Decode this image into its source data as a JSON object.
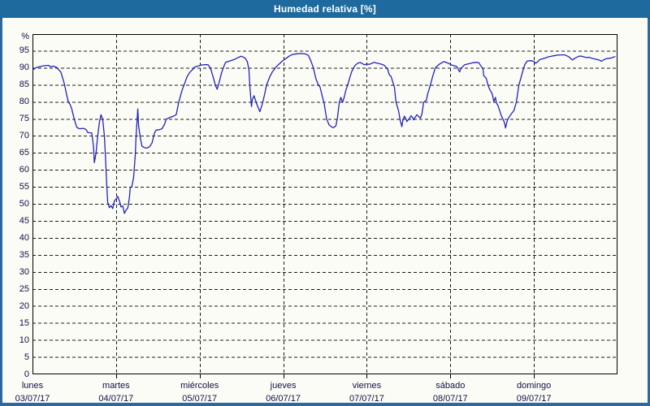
{
  "window": {
    "title": "Humedad relativa [%]"
  },
  "colors": {
    "titlebar_bg": "#1e6a9e",
    "titlebar_text": "#ffffff",
    "frame_border": "#2a6aa0",
    "content_bg": "#fcfcf6",
    "grid": "#1c1c1c",
    "axis": "#000000",
    "line": "#2222c0",
    "label_text": "#101048"
  },
  "y_axis": {
    "unit_label": "%",
    "min": 0,
    "max": 100,
    "tick_step": 5,
    "labeled_ticks_from": 0,
    "labeled_ticks_to": 95
  },
  "x_axis": {
    "days": [
      {
        "name": "lunes",
        "date": "03/07/17"
      },
      {
        "name": "martes",
        "date": "04/07/17"
      },
      {
        "name": "miércoles",
        "date": "05/07/17"
      },
      {
        "name": "jueves",
        "date": "06/07/17"
      },
      {
        "name": "viernes",
        "date": "07/07/17"
      },
      {
        "name": "sábado",
        "date": "08/07/17"
      },
      {
        "name": "domingo",
        "date": "09/07/17"
      }
    ]
  },
  "chart_data": {
    "type": "line",
    "title": "Humedad relativa [%]",
    "xlabel": "",
    "ylabel": "%",
    "ylim": [
      0,
      100
    ],
    "y_tick_step": 5,
    "grid": "dashed",
    "legend": "none",
    "x_unit": "days since lunes 03/07/17 00:00",
    "x_range": [
      0,
      7
    ],
    "x_tick_labels": [
      "lunes 03/07/17",
      "martes 04/07/17",
      "miércoles 05/07/17",
      "jueves 06/07/17",
      "viernes 07/07/17",
      "sábado 08/07/17",
      "domingo 09/07/17"
    ],
    "series": [
      {
        "name": "Humedad relativa [%]",
        "color": "#2222c0",
        "points": [
          [
            0.0,
            89.3
          ],
          [
            0.03,
            90.0
          ],
          [
            0.08,
            90.4
          ],
          [
            0.13,
            90.7
          ],
          [
            0.19,
            90.8
          ],
          [
            0.22,
            90.4
          ],
          [
            0.25,
            90.6
          ],
          [
            0.29,
            90.2
          ],
          [
            0.34,
            88.8
          ],
          [
            0.38,
            85.5
          ],
          [
            0.41,
            82.0
          ],
          [
            0.43,
            80.0
          ],
          [
            0.45,
            79.3
          ],
          [
            0.47,
            78.0
          ],
          [
            0.5,
            75.0
          ],
          [
            0.53,
            72.6
          ],
          [
            0.56,
            72.2
          ],
          [
            0.61,
            72.3
          ],
          [
            0.64,
            72.0
          ],
          [
            0.66,
            71.1
          ],
          [
            0.71,
            70.9
          ],
          [
            0.73,
            67.0
          ],
          [
            0.74,
            62.2
          ],
          [
            0.76,
            65.0
          ],
          [
            0.78,
            70.0
          ],
          [
            0.8,
            74.0
          ],
          [
            0.82,
            76.3
          ],
          [
            0.84,
            75.0
          ],
          [
            0.86,
            70.0
          ],
          [
            0.875,
            63.0
          ],
          [
            0.89,
            55.0
          ],
          [
            0.9,
            50.5
          ],
          [
            0.92,
            49.0
          ],
          [
            0.94,
            49.6
          ],
          [
            0.96,
            48.7
          ],
          [
            0.98,
            51.0
          ],
          [
            1.0,
            51.5
          ],
          [
            1.02,
            52.3
          ],
          [
            1.04,
            51.0
          ],
          [
            1.06,
            49.2
          ],
          [
            1.08,
            49.5
          ],
          [
            1.1,
            47.3
          ],
          [
            1.12,
            48.3
          ],
          [
            1.14,
            48.9
          ],
          [
            1.16,
            52.0
          ],
          [
            1.17,
            54.8
          ],
          [
            1.19,
            55.3
          ],
          [
            1.21,
            58.0
          ],
          [
            1.23,
            64.5
          ],
          [
            1.24,
            70.0
          ],
          [
            1.26,
            78.0
          ],
          [
            1.27,
            73.0
          ],
          [
            1.29,
            69.5
          ],
          [
            1.31,
            67.1
          ],
          [
            1.34,
            66.6
          ],
          [
            1.37,
            66.5
          ],
          [
            1.4,
            66.9
          ],
          [
            1.43,
            68.0
          ],
          [
            1.46,
            71.0
          ],
          [
            1.48,
            71.8
          ],
          [
            1.52,
            71.9
          ],
          [
            1.55,
            72.2
          ],
          [
            1.58,
            73.5
          ],
          [
            1.6,
            75.0
          ],
          [
            1.64,
            75.5
          ],
          [
            1.68,
            75.8
          ],
          [
            1.72,
            76.3
          ],
          [
            1.75,
            80.0
          ],
          [
            1.79,
            83.5
          ],
          [
            1.82,
            85.5
          ],
          [
            1.85,
            87.5
          ],
          [
            1.88,
            88.7
          ],
          [
            1.92,
            89.7
          ],
          [
            1.94,
            90.3
          ],
          [
            1.99,
            90.7
          ],
          [
            2.02,
            90.9
          ],
          [
            2.06,
            91.0
          ],
          [
            2.1,
            91.0
          ],
          [
            2.13,
            90.0
          ],
          [
            2.16,
            87.5
          ],
          [
            2.19,
            84.8
          ],
          [
            2.21,
            83.8
          ],
          [
            2.23,
            85.5
          ],
          [
            2.26,
            88.5
          ],
          [
            2.29,
            90.5
          ],
          [
            2.31,
            91.7
          ],
          [
            2.36,
            92.1
          ],
          [
            2.41,
            92.5
          ],
          [
            2.46,
            93.1
          ],
          [
            2.5,
            93.5
          ],
          [
            2.54,
            93.0
          ],
          [
            2.57,
            92.0
          ],
          [
            2.59,
            89.5
          ],
          [
            2.6,
            85.0
          ],
          [
            2.62,
            78.7
          ],
          [
            2.63,
            80.5
          ],
          [
            2.65,
            81.9
          ],
          [
            2.67,
            80.5
          ],
          [
            2.69,
            79.0
          ],
          [
            2.72,
            77.2
          ],
          [
            2.75,
            79.5
          ],
          [
            2.78,
            82.5
          ],
          [
            2.8,
            85.0
          ],
          [
            2.84,
            87.5
          ],
          [
            2.87,
            88.9
          ],
          [
            2.92,
            90.5
          ],
          [
            2.96,
            91.4
          ],
          [
            2.99,
            92.1
          ],
          [
            3.03,
            92.8
          ],
          [
            3.07,
            93.5
          ],
          [
            3.11,
            94.0
          ],
          [
            3.16,
            94.2
          ],
          [
            3.21,
            94.3
          ],
          [
            3.26,
            94.2
          ],
          [
            3.3,
            93.8
          ],
          [
            3.33,
            92.2
          ],
          [
            3.36,
            90.2
          ],
          [
            3.39,
            87.0
          ],
          [
            3.42,
            85.0
          ],
          [
            3.44,
            84.5
          ],
          [
            3.47,
            81.5
          ],
          [
            3.49,
            79.5
          ],
          [
            3.52,
            75.0
          ],
          [
            3.55,
            73.3
          ],
          [
            3.58,
            72.7
          ],
          [
            3.6,
            72.5
          ],
          [
            3.63,
            73.0
          ],
          [
            3.65,
            75.5
          ],
          [
            3.67,
            79.8
          ],
          [
            3.69,
            81.4
          ],
          [
            3.71,
            79.9
          ],
          [
            3.73,
            81.5
          ],
          [
            3.75,
            83.5
          ],
          [
            3.77,
            85.0
          ],
          [
            3.8,
            87.5
          ],
          [
            3.82,
            89.0
          ],
          [
            3.86,
            90.8
          ],
          [
            3.89,
            91.4
          ],
          [
            3.92,
            91.7
          ],
          [
            3.95,
            91.3
          ],
          [
            3.97,
            91.0
          ],
          [
            4.0,
            91.2
          ],
          [
            4.03,
            91.1
          ],
          [
            4.06,
            91.4
          ],
          [
            4.09,
            91.7
          ],
          [
            4.13,
            91.4
          ],
          [
            4.17,
            91.2
          ],
          [
            4.21,
            90.8
          ],
          [
            4.25,
            89.7
          ],
          [
            4.27,
            88.0
          ],
          [
            4.29,
            87.6
          ],
          [
            4.31,
            86.0
          ],
          [
            4.33,
            84.5
          ],
          [
            4.35,
            80.0
          ],
          [
            4.38,
            77.5
          ],
          [
            4.4,
            74.6
          ],
          [
            4.42,
            72.8
          ],
          [
            4.43,
            74.5
          ],
          [
            4.45,
            75.9
          ],
          [
            4.47,
            75.0
          ],
          [
            4.48,
            74.3
          ],
          [
            4.51,
            75.2
          ],
          [
            4.53,
            76.0
          ],
          [
            4.55,
            75.4
          ],
          [
            4.56,
            74.8
          ],
          [
            4.58,
            75.6
          ],
          [
            4.6,
            76.3
          ],
          [
            4.62,
            75.8
          ],
          [
            4.64,
            75.3
          ],
          [
            4.66,
            76.5
          ],
          [
            4.68,
            80.0
          ],
          [
            4.7,
            80.3
          ],
          [
            4.71,
            80.4
          ],
          [
            4.73,
            82.5
          ],
          [
            4.76,
            85.0
          ],
          [
            4.79,
            87.7
          ],
          [
            4.82,
            90.1
          ],
          [
            4.87,
            91.2
          ],
          [
            4.92,
            91.9
          ],
          [
            4.97,
            91.5
          ],
          [
            5.0,
            91.1
          ],
          [
            5.03,
            90.8
          ],
          [
            5.06,
            90.6
          ],
          [
            5.08,
            90.4
          ],
          [
            5.11,
            88.9
          ],
          [
            5.13,
            90.0
          ],
          [
            5.17,
            91.0
          ],
          [
            5.22,
            91.3
          ],
          [
            5.27,
            91.6
          ],
          [
            5.31,
            91.7
          ],
          [
            5.34,
            91.6
          ],
          [
            5.37,
            90.5
          ],
          [
            5.39,
            89.8
          ],
          [
            5.4,
            87.8
          ],
          [
            5.43,
            87.0
          ],
          [
            5.45,
            85.0
          ],
          [
            5.47,
            83.8
          ],
          [
            5.5,
            82.5
          ],
          [
            5.52,
            80.2
          ],
          [
            5.54,
            81.4
          ],
          [
            5.55,
            79.8
          ],
          [
            5.57,
            79.0
          ],
          [
            5.59,
            77.5
          ],
          [
            5.61,
            76.0
          ],
          [
            5.63,
            75.0
          ],
          [
            5.65,
            73.8
          ],
          [
            5.66,
            72.4
          ],
          [
            5.68,
            74.5
          ],
          [
            5.7,
            75.5
          ],
          [
            5.73,
            76.6
          ],
          [
            5.76,
            77.5
          ],
          [
            5.79,
            80.0
          ],
          [
            5.82,
            85.0
          ],
          [
            5.86,
            88.5
          ],
          [
            5.89,
            91.0
          ],
          [
            5.92,
            92.1
          ],
          [
            5.96,
            92.2
          ],
          [
            6.0,
            92.0
          ],
          [
            6.02,
            91.4
          ],
          [
            6.04,
            91.8
          ],
          [
            6.07,
            92.5
          ],
          [
            6.11,
            92.8
          ],
          [
            6.17,
            93.3
          ],
          [
            6.23,
            93.6
          ],
          [
            6.3,
            93.9
          ],
          [
            6.37,
            93.9
          ],
          [
            6.42,
            93.3
          ],
          [
            6.45,
            92.6
          ],
          [
            6.46,
            92.4
          ],
          [
            6.49,
            92.9
          ],
          [
            6.54,
            93.5
          ],
          [
            6.57,
            93.5
          ],
          [
            6.6,
            93.3
          ],
          [
            6.63,
            93.1
          ],
          [
            6.66,
            93.2
          ],
          [
            6.69,
            92.9
          ],
          [
            6.73,
            92.7
          ],
          [
            6.76,
            92.5
          ],
          [
            6.79,
            92.3
          ],
          [
            6.81,
            92.0
          ],
          [
            6.84,
            92.5
          ],
          [
            6.87,
            92.8
          ],
          [
            6.91,
            92.9
          ],
          [
            6.94,
            93.1
          ],
          [
            6.97,
            93.4
          ]
        ]
      }
    ]
  }
}
